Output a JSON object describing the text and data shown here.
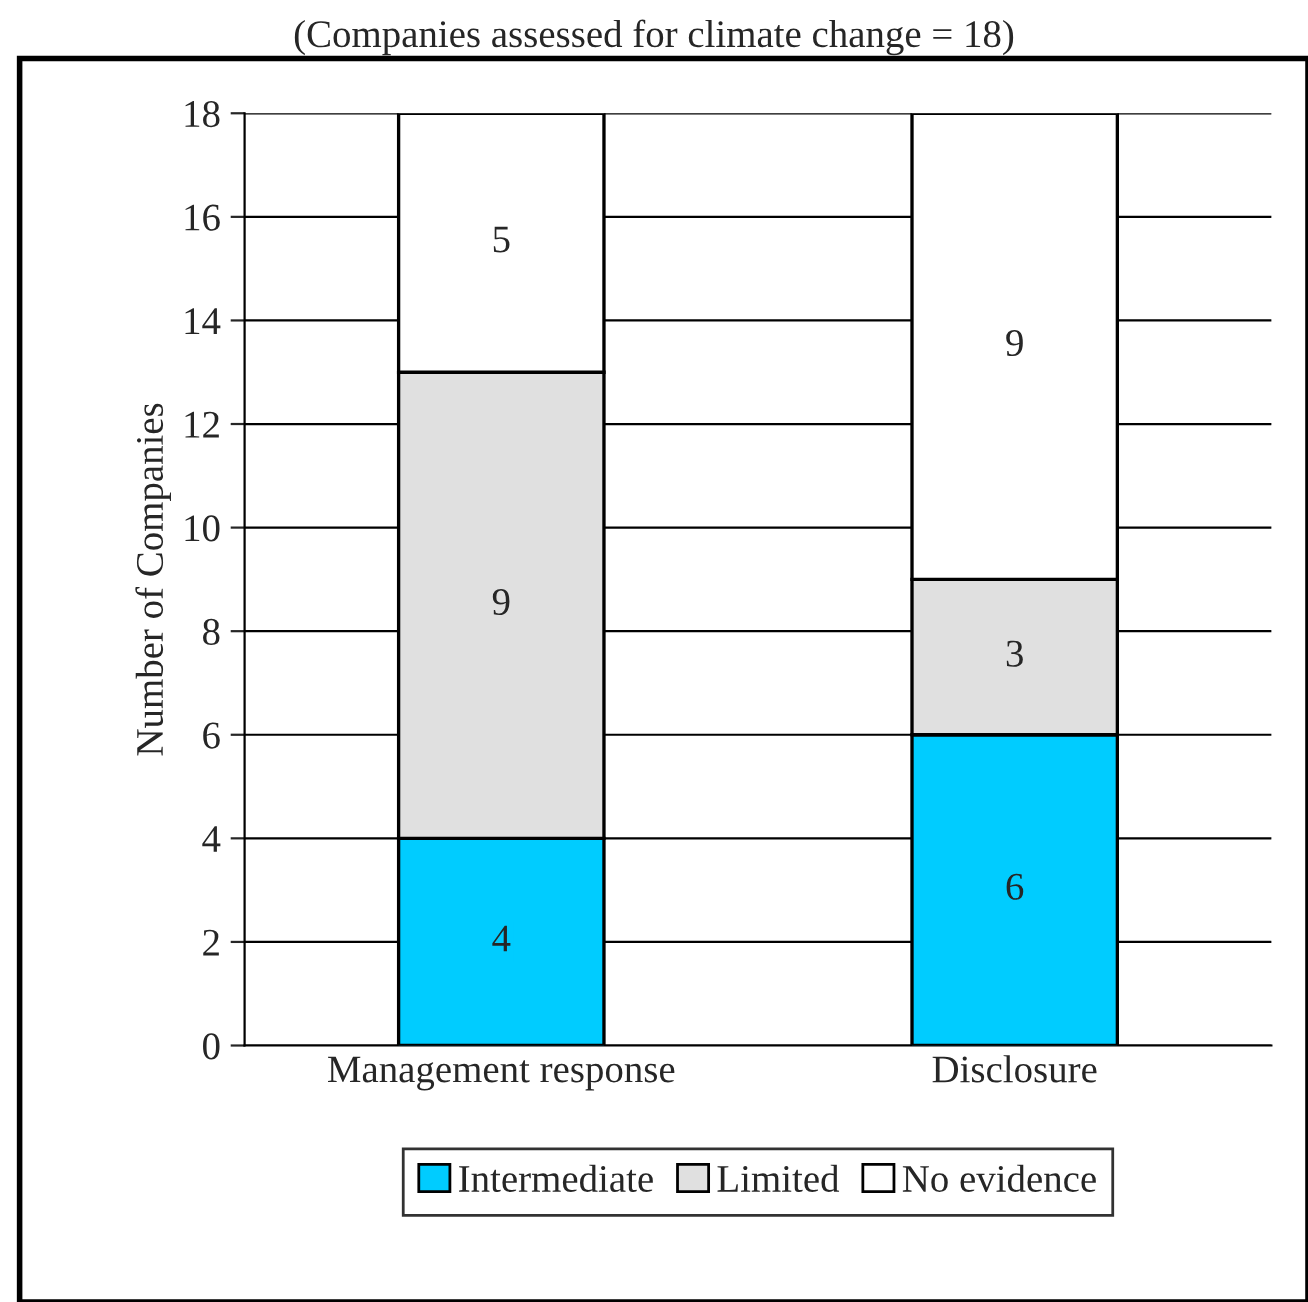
{
  "chart_data": {
    "type": "bar",
    "subtitle": "(Companies assessed for climate change = 18)",
    "ylabel": "Number of Companies",
    "categories": [
      "Management response",
      "Disclosure"
    ],
    "stacked": true,
    "series": [
      {
        "name": "Intermediate",
        "color": "#00ccff",
        "values": [
          4,
          6
        ]
      },
      {
        "name": "Limited",
        "color": "#e0e0e0",
        "values": [
          9,
          3
        ]
      },
      {
        "name": "No evidence",
        "color": "#ffffff",
        "values": [
          5,
          9
        ]
      }
    ],
    "ylim": [
      0,
      18
    ],
    "yticks": [
      0,
      2,
      4,
      6,
      8,
      10,
      12,
      14,
      16,
      18
    ],
    "grid": "y",
    "data_labels": true,
    "legend": "bottom"
  }
}
